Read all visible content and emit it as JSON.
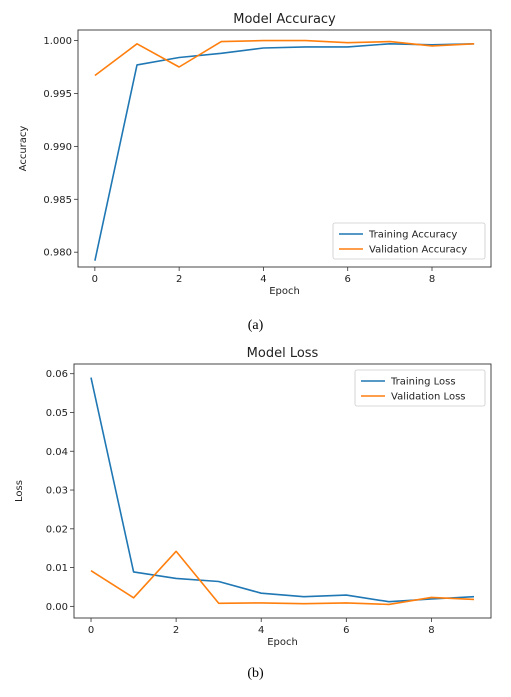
{
  "chart_data": [
    {
      "type": "line",
      "title": "Model Accuracy",
      "xlabel": "Epoch",
      "ylabel": "Accuracy",
      "xlim": [
        -0.4,
        9.4
      ],
      "ylim": [
        0.9786,
        1.001
      ],
      "xticks": [
        "0",
        "2",
        "4",
        "6",
        "8"
      ],
      "xtick_values": [
        0,
        2,
        4,
        6,
        8
      ],
      "yticks": [
        "0.980",
        "0.985",
        "0.990",
        "0.995",
        "1.000"
      ],
      "ytick_values": [
        0.98,
        0.985,
        0.99,
        0.995,
        1.0
      ],
      "grid": false,
      "legend": "bottom-right",
      "x": [
        0,
        1,
        2,
        3,
        4,
        5,
        6,
        7,
        8,
        9
      ],
      "series": [
        {
          "name": "Training Accuracy",
          "color": "#1f77b4",
          "values": [
            0.9792,
            0.9977,
            0.9984,
            0.9988,
            0.9993,
            0.9994,
            0.9994,
            0.9997,
            0.9996,
            0.9997
          ]
        },
        {
          "name": "Validation Accuracy",
          "color": "#ff7f0e",
          "values": [
            0.9967,
            0.9997,
            0.9975,
            0.9999,
            1.0,
            1.0,
            0.9998,
            0.9999,
            0.9995,
            0.9997
          ]
        }
      ],
      "caption": "(a)"
    },
    {
      "type": "line",
      "title": "Model Loss",
      "xlabel": "Epoch",
      "ylabel": "Loss",
      "xlim": [
        -0.4,
        9.4
      ],
      "ylim": [
        -0.003,
        0.0625
      ],
      "xticks": [
        "0",
        "2",
        "4",
        "6",
        "8"
      ],
      "xtick_values": [
        0,
        2,
        4,
        6,
        8
      ],
      "yticks": [
        "0.00",
        "0.01",
        "0.02",
        "0.03",
        "0.04",
        "0.05",
        "0.06"
      ],
      "ytick_values": [
        0.0,
        0.01,
        0.02,
        0.03,
        0.04,
        0.05,
        0.06
      ],
      "grid": false,
      "legend": "top-right",
      "x": [
        0,
        1,
        2,
        3,
        4,
        5,
        6,
        7,
        8,
        9
      ],
      "series": [
        {
          "name": "Training Loss",
          "color": "#1f77b4",
          "values": [
            0.059,
            0.0089,
            0.0072,
            0.0064,
            0.0034,
            0.0025,
            0.0029,
            0.0012,
            0.0019,
            0.0025
          ]
        },
        {
          "name": "Validation Loss",
          "color": "#ff7f0e",
          "values": [
            0.0092,
            0.0022,
            0.0142,
            0.0008,
            0.0009,
            0.0007,
            0.0009,
            0.0005,
            0.0023,
            0.0018
          ]
        }
      ],
      "caption": "(b)"
    }
  ]
}
